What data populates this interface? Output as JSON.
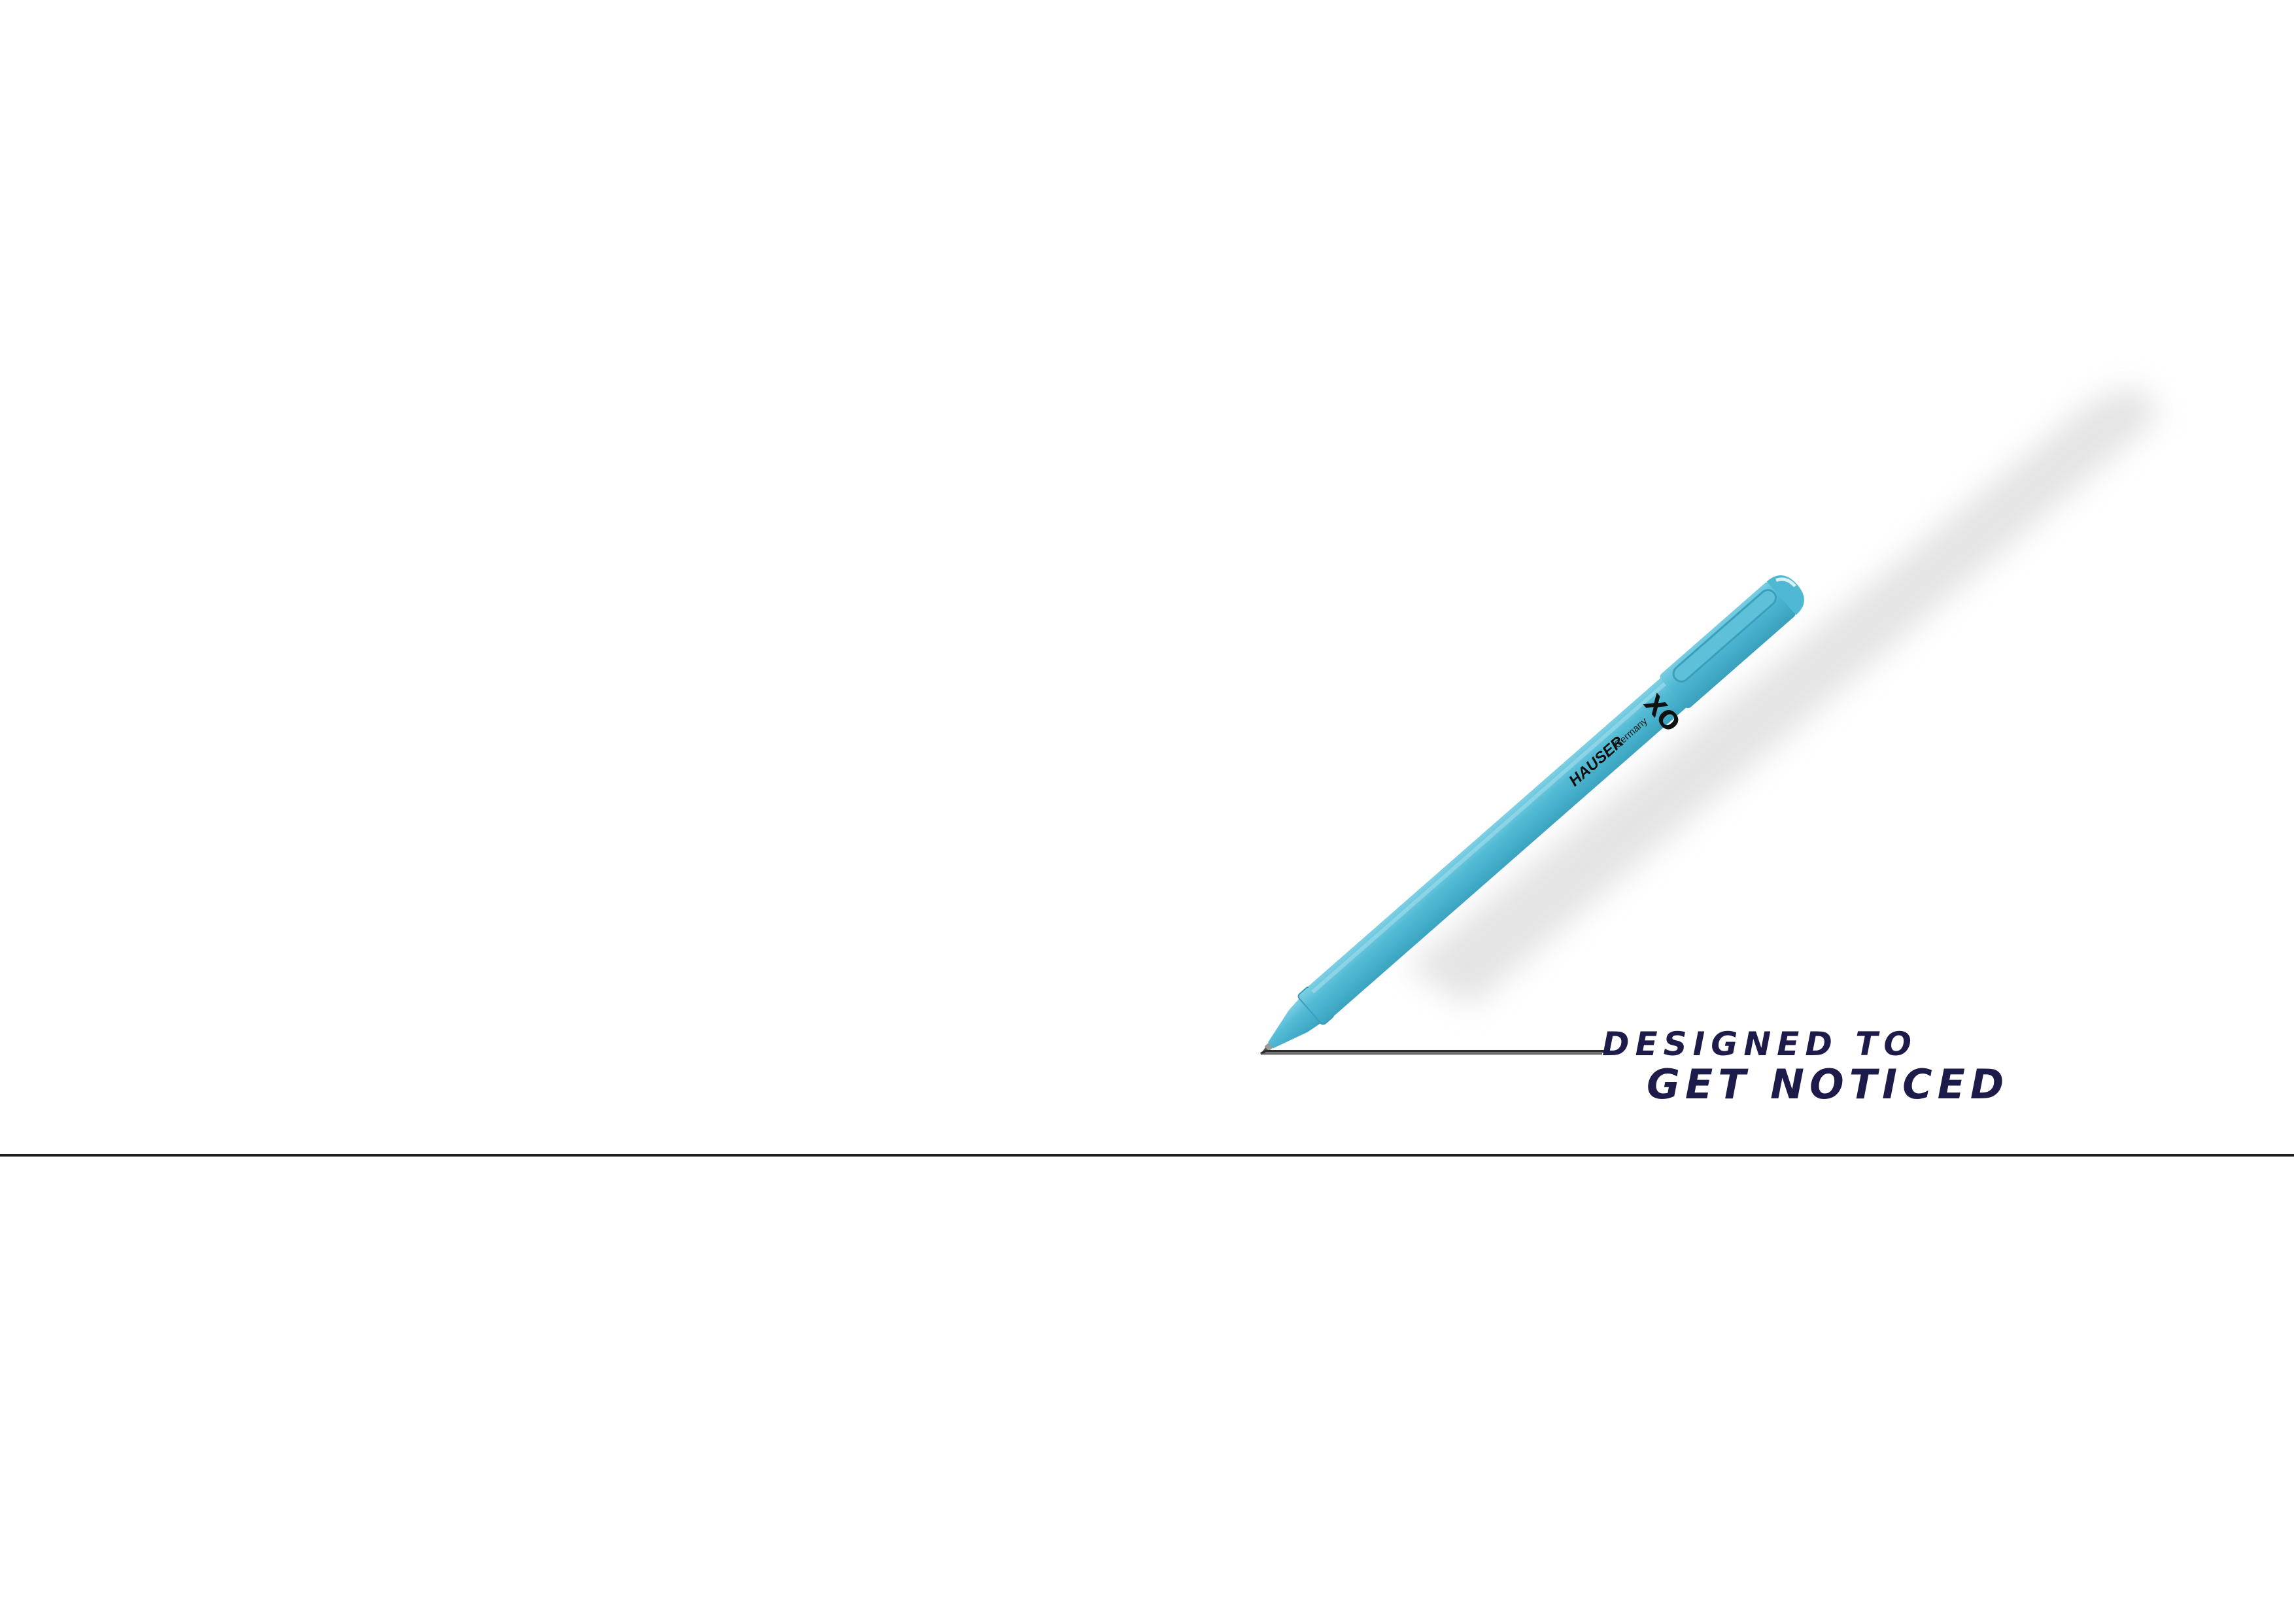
{
  "product": {
    "brand": "HAUSER",
    "origin": "Germany",
    "model": "XO",
    "body_color": "#4fb8d3",
    "cap_color": "#47b0cb",
    "tip_color": "#6c6c6c"
  },
  "tagline": {
    "line1": "DESIGNED TO",
    "line2": "GET NOTICED",
    "color": "#1c1b4a"
  },
  "colors": {
    "background": "#ffffff",
    "divider": "#1e1e1e",
    "shadow": "#d9d9d9"
  }
}
